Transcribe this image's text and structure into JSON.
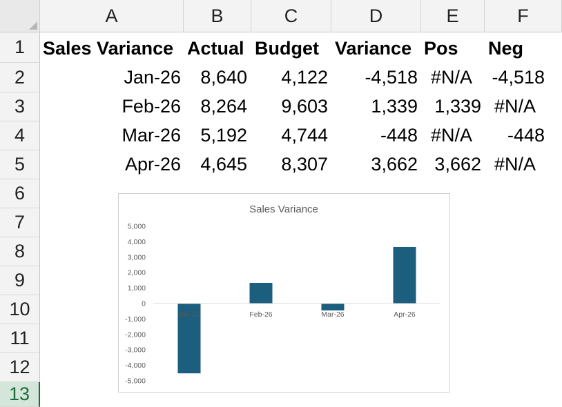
{
  "columns": [
    "A",
    "B",
    "C",
    "D",
    "E",
    "F"
  ],
  "rows": [
    "1",
    "2",
    "3",
    "4",
    "5",
    "6",
    "7",
    "8",
    "9",
    "10",
    "11",
    "12",
    "13"
  ],
  "selected_row": "13",
  "table": {
    "headers": [
      "Sales Variance",
      "Actual",
      "Budget",
      "Variance",
      "Pos",
      "Neg"
    ],
    "records": [
      [
        "Jan-26",
        "8,640",
        "4,122",
        "-4,518",
        "#N/A",
        "-4,518"
      ],
      [
        "Feb-26",
        "8,264",
        "9,603",
        "1,339",
        "1,339",
        "#N/A"
      ],
      [
        "Mar-26",
        "5,192",
        "4,744",
        "-448",
        "#N/A",
        "-448"
      ],
      [
        "Apr-26",
        "4,645",
        "8,307",
        "3,662",
        "3,662",
        "#N/A"
      ]
    ]
  },
  "chart_data": {
    "type": "bar",
    "title": "Sales Variance",
    "categories": [
      "Jan-26",
      "Feb-26",
      "Mar-26",
      "Apr-26"
    ],
    "values": [
      -4518,
      1339,
      -448,
      3662
    ],
    "ylim": [
      -5000,
      5000
    ],
    "yticks": [
      5000,
      4000,
      3000,
      2000,
      1000,
      0,
      -1000,
      -2000,
      -3000,
      -4000,
      -5000
    ],
    "ytick_labels": [
      "5,000",
      "4,000",
      "3,000",
      "2,000",
      "1,000",
      "0",
      "-1,000",
      "-2,000",
      "-3,000",
      "-4,000",
      "-5,000"
    ],
    "grid": false,
    "legend": "none",
    "bar_color": "#1b5e7e"
  },
  "colors": {
    "header_bg": "#f3f3f3",
    "selected_row_bg": "#d3e6d9",
    "selected_row_text": "#1d6b38"
  }
}
